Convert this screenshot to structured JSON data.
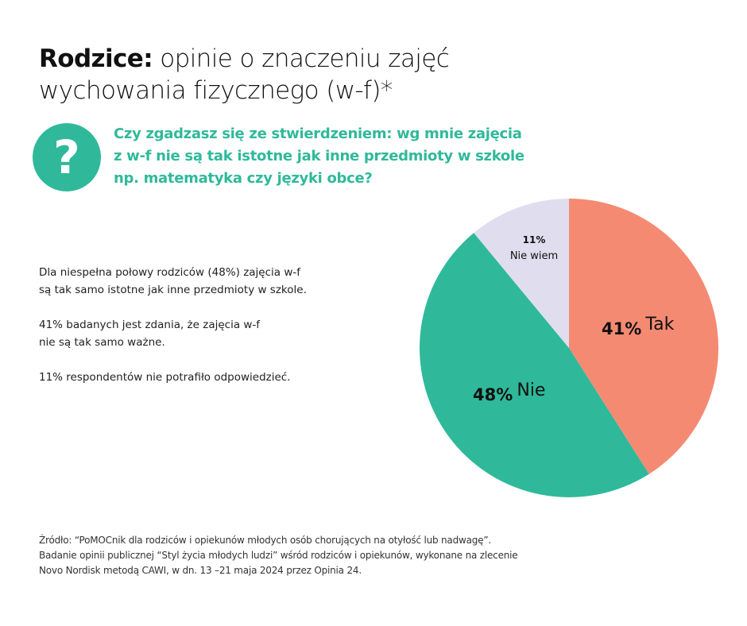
{
  "title": {
    "bold": "Rodzice:",
    "line1_rest": " opinie o znaczeniu zajęć",
    "line2": "wychowania fizycznego (w-f)*"
  },
  "question_icon": "question-mark-icon",
  "question": {
    "line1": "Czy zgadzasz się ze stwierdzeniem: wg mnie zajęcia",
    "line2": "z w-f nie są tak istotne jak inne przedmioty w szkole",
    "line3": "np. matematyka czy języki obce?"
  },
  "description": {
    "p1_line1": "Dla niespełna połowy rodziców (48%) zajęcia w-f",
    "p1_line2": "są tak samo istotne jak inne przedmioty w szkole.",
    "p2_line1": "41% badanych jest zdania, że zajęcia w-f",
    "p2_line2": "nie są tak samo ważne.",
    "p3_line1": "11% respondentów nie potrafiło odpowiedzieć."
  },
  "source": {
    "line1": "Źródło: “PoMOCnik dla rodziców i opiekunów młodych osób chorujących na otyłość lub nadwagę”.",
    "line2": "Badanie opinii publicznej “Styl życia młodych ludzi” wśród rodziców i opiekunów, wykonane na zlecenie",
    "line3": "Novo Nordisk metodą CAWI, w dn. 13 –21 maja 2024 przez Opinia 24."
  },
  "colors": {
    "accent": "#2fb99a",
    "tak": "#f58a73",
    "nie": "#2fb99a",
    "nie_wiem": "#e0ddee"
  },
  "chart_data": {
    "type": "pie",
    "title": "Czy zgadzasz się ze stwierdzeniem: wg mnie zajęcia z w-f nie są tak istotne jak inne przedmioty w szkole np. matematyka czy języki obce?",
    "categories": [
      "Tak",
      "Nie",
      "Nie wiem"
    ],
    "values": [
      41,
      48,
      11
    ],
    "unit": "%",
    "colors": [
      "#f58a73",
      "#2fb99a",
      "#e0ddee"
    ],
    "labels": [
      {
        "pct": "41%",
        "name": "Tak"
      },
      {
        "pct": "48%",
        "name": "Nie"
      },
      {
        "pct": "11%",
        "name": "Nie wiem"
      }
    ],
    "start_angle": "12 o'clock, clockwise",
    "legend": "none (inline labels)"
  }
}
